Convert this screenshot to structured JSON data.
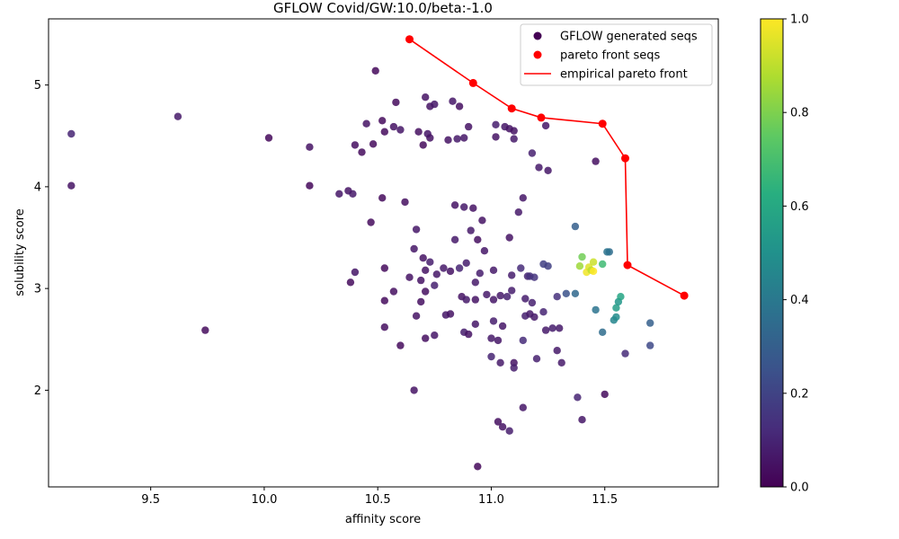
{
  "chart_data": {
    "type": "scatter",
    "title": "GFLOW Covid/GW:10.0/beta:-1.0",
    "xlabel": "affinity score",
    "ylabel": "solubility score",
    "xlim": [
      9.05,
      12.0
    ],
    "ylim": [
      1.05,
      5.65
    ],
    "xticks": [
      "9.5",
      "10.0",
      "10.5",
      "11.0",
      "11.5"
    ],
    "yticks": [
      "2",
      "3",
      "4",
      "5"
    ],
    "grid": false,
    "legend_position": "top-right",
    "legend": [
      {
        "label": "GFLOW generated seqs",
        "kind": "dot",
        "color": "#440154"
      },
      {
        "label": "pareto front seqs",
        "kind": "dot",
        "color": "#ff0000"
      },
      {
        "label": "empirical pareto front",
        "kind": "line",
        "color": "#ff0000"
      }
    ],
    "colorbar": {
      "colormap": "viridis",
      "range": [
        0.0,
        1.0
      ],
      "ticks": [
        "0.0",
        "0.2",
        "0.4",
        "0.6",
        "0.8",
        "1.0"
      ]
    },
    "series": [
      {
        "kind": "scatter",
        "points": [
          [
            9.15,
            4.52,
            0.1
          ],
          [
            9.15,
            4.01,
            0.05
          ],
          [
            9.62,
            4.69,
            0.07
          ],
          [
            9.74,
            2.59,
            0.03
          ],
          [
            10.02,
            4.48,
            0.02
          ],
          [
            10.2,
            4.39,
            0.05
          ],
          [
            10.2,
            4.01,
            0.02
          ],
          [
            10.33,
            3.93,
            0.06
          ],
          [
            10.37,
            3.96,
            0.05
          ],
          [
            10.39,
            3.93,
            0.07
          ],
          [
            10.4,
            4.41,
            0.04
          ],
          [
            10.43,
            4.34,
            0.03
          ],
          [
            10.45,
            4.62,
            0.05
          ],
          [
            10.47,
            3.65,
            0.03
          ],
          [
            10.48,
            4.42,
            0.03
          ],
          [
            10.49,
            5.14,
            0.02
          ],
          [
            10.52,
            4.65,
            0.03
          ],
          [
            10.53,
            4.54,
            0.03
          ],
          [
            10.52,
            3.89,
            0.03
          ],
          [
            10.58,
            4.83,
            0.03
          ],
          [
            10.57,
            4.59,
            0.05
          ],
          [
            10.6,
            4.56,
            0.06
          ],
          [
            10.62,
            3.85,
            0.04
          ],
          [
            10.38,
            3.06,
            0.03
          ],
          [
            10.4,
            3.16,
            0.06
          ],
          [
            10.53,
            3.2,
            0.03
          ],
          [
            10.53,
            2.88,
            0.03
          ],
          [
            10.53,
            2.62,
            0.04
          ],
          [
            10.57,
            2.97,
            0.04
          ],
          [
            10.6,
            2.44,
            0.03
          ],
          [
            10.64,
            3.11,
            0.05
          ],
          [
            10.66,
            3.39,
            0.06
          ],
          [
            10.67,
            3.58,
            0.06
          ],
          [
            10.67,
            2.73,
            0.05
          ],
          [
            10.68,
            4.54,
            0.04
          ],
          [
            10.69,
            3.08,
            0.05
          ],
          [
            10.7,
            4.41,
            0.03
          ],
          [
            10.71,
            4.88,
            0.05
          ],
          [
            10.72,
            4.52,
            0.06
          ],
          [
            10.73,
            4.48,
            0.05
          ],
          [
            10.73,
            4.79,
            0.05
          ],
          [
            10.75,
            4.81,
            0.06
          ],
          [
            10.73,
            3.26,
            0.08
          ],
          [
            10.75,
            3.03,
            0.09
          ],
          [
            10.76,
            3.14,
            0.06
          ],
          [
            10.7,
            3.3,
            0.05
          ],
          [
            10.71,
            3.18,
            0.05
          ],
          [
            10.71,
            2.97,
            0.04
          ],
          [
            10.69,
            2.87,
            0.04
          ],
          [
            10.71,
            2.51,
            0.04
          ],
          [
            10.75,
            2.54,
            0.06
          ],
          [
            10.66,
            2.0,
            0.05
          ],
          [
            10.79,
            3.2,
            0.07
          ],
          [
            10.8,
            2.74,
            0.06
          ],
          [
            10.82,
            2.75,
            0.05
          ],
          [
            10.82,
            3.17,
            0.05
          ],
          [
            10.81,
            4.46,
            0.05
          ],
          [
            10.83,
            4.84,
            0.06
          ],
          [
            10.84,
            3.82,
            0.05
          ],
          [
            10.84,
            3.48,
            0.07
          ],
          [
            10.85,
            4.47,
            0.07
          ],
          [
            10.86,
            4.79,
            0.04
          ],
          [
            10.86,
            3.2,
            0.1
          ],
          [
            10.87,
            2.92,
            0.05
          ],
          [
            10.88,
            4.48,
            0.06
          ],
          [
            10.88,
            3.8,
            0.07
          ],
          [
            10.89,
            3.25,
            0.08
          ],
          [
            10.89,
            2.89,
            0.07
          ],
          [
            10.88,
            2.57,
            0.08
          ],
          [
            10.9,
            2.55,
            0.05
          ],
          [
            10.9,
            4.59,
            0.05
          ],
          [
            10.91,
            3.57,
            0.07
          ],
          [
            10.92,
            3.79,
            0.05
          ],
          [
            10.93,
            3.06,
            0.07
          ],
          [
            10.93,
            2.89,
            0.05
          ],
          [
            10.93,
            2.65,
            0.06
          ],
          [
            10.94,
            3.48,
            0.04
          ],
          [
            10.95,
            3.15,
            0.08
          ],
          [
            10.96,
            3.67,
            0.05
          ],
          [
            10.97,
            3.37,
            0.06
          ],
          [
            10.98,
            2.94,
            0.07
          ],
          [
            11.0,
            2.51,
            0.07
          ],
          [
            11.0,
            2.33,
            0.1
          ],
          [
            11.01,
            3.18,
            0.07
          ],
          [
            11.01,
            2.89,
            0.06
          ],
          [
            11.01,
            2.68,
            0.08
          ],
          [
            11.02,
            4.61,
            0.08
          ],
          [
            11.02,
            4.49,
            0.05
          ],
          [
            11.03,
            2.49,
            0.06
          ],
          [
            11.04,
            2.93,
            0.07
          ],
          [
            11.04,
            2.27,
            0.07
          ],
          [
            11.05,
            2.63,
            0.06
          ],
          [
            11.06,
            4.59,
            0.06
          ],
          [
            11.08,
            4.57,
            0.05
          ],
          [
            11.08,
            3.5,
            0.05
          ],
          [
            11.09,
            3.13,
            0.08
          ],
          [
            11.07,
            2.92,
            0.09
          ],
          [
            11.09,
            2.98,
            0.08
          ],
          [
            11.1,
            4.55,
            0.05
          ],
          [
            11.1,
            4.47,
            0.07
          ],
          [
            11.1,
            2.27,
            0.05
          ],
          [
            11.1,
            2.22,
            0.08
          ],
          [
            11.12,
            3.75,
            0.07
          ],
          [
            11.13,
            3.2,
            0.12
          ],
          [
            11.14,
            3.89,
            0.06
          ],
          [
            11.14,
            2.49,
            0.12
          ],
          [
            11.15,
            2.9,
            0.08
          ],
          [
            11.15,
            2.73,
            0.09
          ],
          [
            11.16,
            3.12,
            0.1
          ],
          [
            11.17,
            2.75,
            0.07
          ],
          [
            11.17,
            3.12,
            0.14
          ],
          [
            11.18,
            2.86,
            0.09
          ],
          [
            11.18,
            4.33,
            0.09
          ],
          [
            11.19,
            3.11,
            0.15
          ],
          [
            11.19,
            2.72,
            0.07
          ],
          [
            11.2,
            2.31,
            0.09
          ],
          [
            11.21,
            4.19,
            0.07
          ],
          [
            11.23,
            3.24,
            0.19
          ],
          [
            11.23,
            2.77,
            0.1
          ],
          [
            11.24,
            4.6,
            0.06
          ],
          [
            11.24,
            2.59,
            0.07
          ],
          [
            11.25,
            3.22,
            0.19
          ],
          [
            11.25,
            4.16,
            0.06
          ],
          [
            11.27,
            2.61,
            0.08
          ],
          [
            11.29,
            2.92,
            0.14
          ],
          [
            11.29,
            2.39,
            0.07
          ],
          [
            11.3,
            2.61,
            0.07
          ],
          [
            11.31,
            2.27,
            0.07
          ],
          [
            11.33,
            2.95,
            0.25
          ],
          [
            11.37,
            3.61,
            0.3
          ],
          [
            11.37,
            2.95,
            0.34
          ],
          [
            11.38,
            1.93,
            0.1
          ],
          [
            11.4,
            1.71,
            0.06
          ],
          [
            11.46,
            4.25,
            0.04
          ],
          [
            11.46,
            2.79,
            0.38
          ],
          [
            11.49,
            2.57,
            0.35
          ],
          [
            11.5,
            1.96,
            0.03
          ],
          [
            11.52,
            3.36,
            0.35
          ],
          [
            11.51,
            3.36,
            0.38
          ],
          [
            11.54,
            2.69,
            0.45
          ],
          [
            11.55,
            2.72,
            0.48
          ],
          [
            11.55,
            2.81,
            0.55
          ],
          [
            11.56,
            2.87,
            0.52
          ],
          [
            11.57,
            2.92,
            0.58
          ],
          [
            11.59,
            2.36,
            0.12
          ],
          [
            11.7,
            2.66,
            0.3
          ],
          [
            11.7,
            2.44,
            0.22
          ],
          [
            11.39,
            3.22,
            0.85
          ],
          [
            11.4,
            3.31,
            0.78
          ],
          [
            11.42,
            3.16,
            0.98
          ],
          [
            11.43,
            3.21,
            0.95
          ],
          [
            11.44,
            3.18,
            0.9
          ],
          [
            11.45,
            3.26,
            0.92
          ],
          [
            11.45,
            3.17,
            1.0
          ],
          [
            11.49,
            3.24,
            0.68
          ],
          [
            11.03,
            1.69,
            0.04
          ],
          [
            11.05,
            1.64,
            0.05
          ],
          [
            11.08,
            1.6,
            0.08
          ],
          [
            11.14,
            1.83,
            0.06
          ],
          [
            10.94,
            1.25,
            0.02
          ]
        ]
      },
      {
        "name": "pareto front seqs",
        "kind": "pareto",
        "color": "#ff0000",
        "points": [
          [
            10.64,
            5.45
          ],
          [
            10.92,
            5.02
          ],
          [
            11.09,
            4.77
          ],
          [
            11.22,
            4.68
          ],
          [
            11.49,
            4.62
          ],
          [
            11.59,
            4.28
          ],
          [
            11.6,
            3.23
          ],
          [
            11.85,
            2.93
          ]
        ]
      }
    ]
  }
}
